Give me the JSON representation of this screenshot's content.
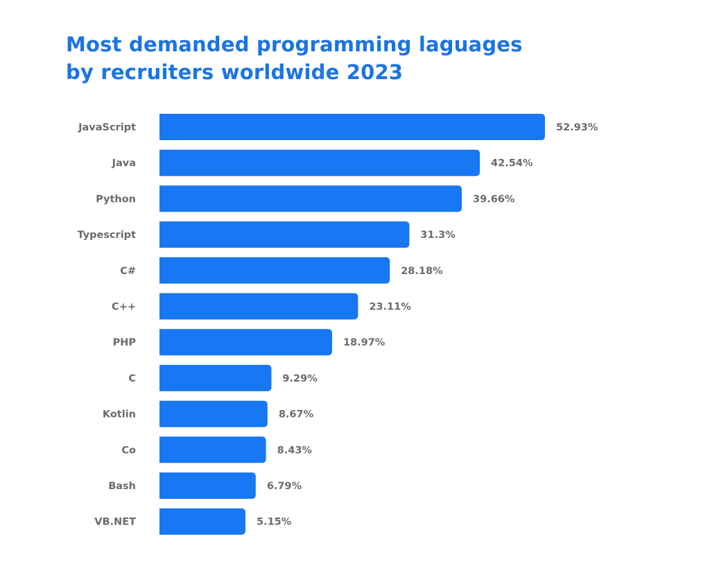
{
  "chart_data": {
    "type": "bar",
    "orientation": "horizontal",
    "title": "Most demanded programming laguages by recruiters worldwide 2023",
    "title_lines": [
      "Most demanded programming laguages",
      "by recruiters worldwide 2023"
    ],
    "categories": [
      "JavaScript",
      "Java",
      "Python",
      "Typescript",
      "C#",
      "C++",
      "PHP",
      "C",
      "Kotlin",
      "Co",
      "Bash",
      "VB.NET"
    ],
    "values": [
      52.93,
      42.54,
      39.66,
      31.3,
      28.18,
      23.11,
      18.97,
      9.29,
      8.67,
      8.43,
      6.79,
      5.15
    ],
    "data_labels": [
      "52.93%",
      "42.54%",
      "39.66%",
      "31.3%",
      "28.18%",
      "23.11%",
      "18.97%",
      "9.29%",
      "8.67%",
      "8.43%",
      "6.79%",
      "5.15%"
    ],
    "xlabel": "",
    "ylabel": "",
    "grid": false,
    "legend": "none",
    "colors": {
      "bar": "#1877f2",
      "title": "#1b74e4",
      "label": "#6b6b6b"
    }
  }
}
